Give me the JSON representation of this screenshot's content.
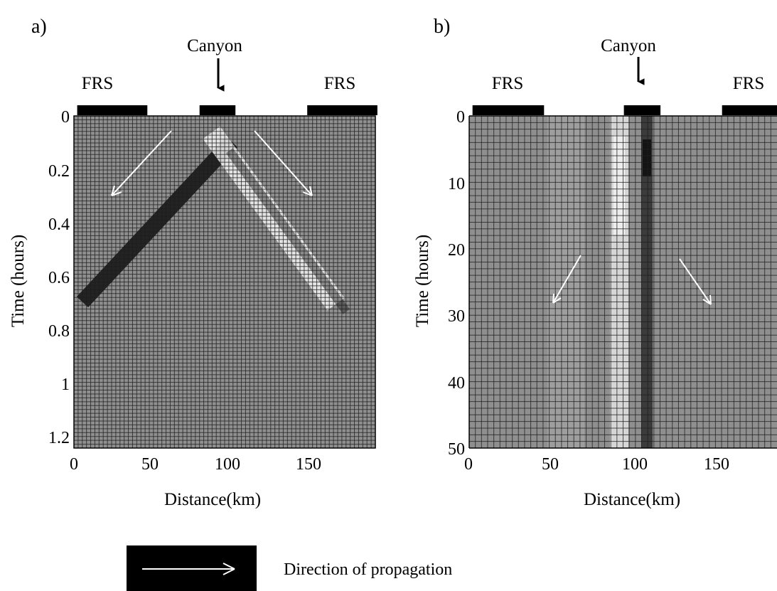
{
  "chart_data": [
    {
      "type": "heatmap",
      "panel_label": "a)",
      "feature_label": "Canyon",
      "region_labels": [
        "FRS",
        "FRS"
      ],
      "xlabel": "Distance(km)",
      "ylabel": "Time (hours)",
      "xlim": [
        0,
        185
      ],
      "ylim": [
        0,
        1.25
      ],
      "x_ticks": [
        0,
        50,
        100,
        150
      ],
      "y_ticks": [
        0,
        0.2,
        0.4,
        0.6,
        0.8,
        1,
        1.2
      ],
      "y_tick_labels": [
        "0",
        "0.2",
        "0.4",
        "0.6",
        "0.8",
        "1",
        "1.2"
      ],
      "grid": true,
      "frs_bars_km": [
        [
          2,
          45
        ],
        [
          77,
          99
        ],
        [
          143,
          186
        ]
      ],
      "canyon_x_km": 90,
      "features": [
        {
          "kind": "dark-ridge",
          "from": [
            90,
            0.04
          ],
          "to": [
            20,
            0.6
          ]
        },
        {
          "kind": "bright-ridge",
          "from": [
            92,
            0.02
          ],
          "to": [
            165,
            0.6
          ]
        }
      ],
      "arrows": [
        {
          "from": [
            62,
            0.05
          ],
          "to": [
            22,
            0.3
          ]
        },
        {
          "from": [
            112,
            0.05
          ],
          "to": [
            147,
            0.3
          ]
        }
      ]
    },
    {
      "type": "heatmap",
      "panel_label": "b)",
      "feature_label": "Canyon",
      "region_labels": [
        "FRS",
        "FRS"
      ],
      "xlabel": "Distance(km)",
      "ylabel": "Time (hours)",
      "xlim": [
        0,
        185
      ],
      "ylim": [
        0,
        50
      ],
      "x_ticks": [
        0,
        50,
        100,
        150
      ],
      "y_ticks": [
        0,
        10,
        20,
        30,
        40,
        50
      ],
      "y_tick_labels": [
        "0",
        "10",
        "20",
        "30",
        "40",
        "50"
      ],
      "grid": true,
      "frs_bars_km": [
        [
          2,
          45
        ],
        [
          93,
          115
        ],
        [
          152,
          196
        ]
      ],
      "canyon_x_km": 105,
      "features": [
        {
          "kind": "bright-column",
          "x_range_km": [
            88,
            99
          ]
        },
        {
          "kind": "dark-column",
          "x_range_km": [
            101,
            108
          ]
        }
      ],
      "arrows": [
        {
          "from": [
            68,
            21
          ],
          "to": [
            52,
            28.5
          ]
        },
        {
          "from": [
            125,
            21.5
          ],
          "to": [
            144,
            28.5
          ]
        }
      ]
    }
  ],
  "legend": {
    "label": "Direction of propagation"
  }
}
